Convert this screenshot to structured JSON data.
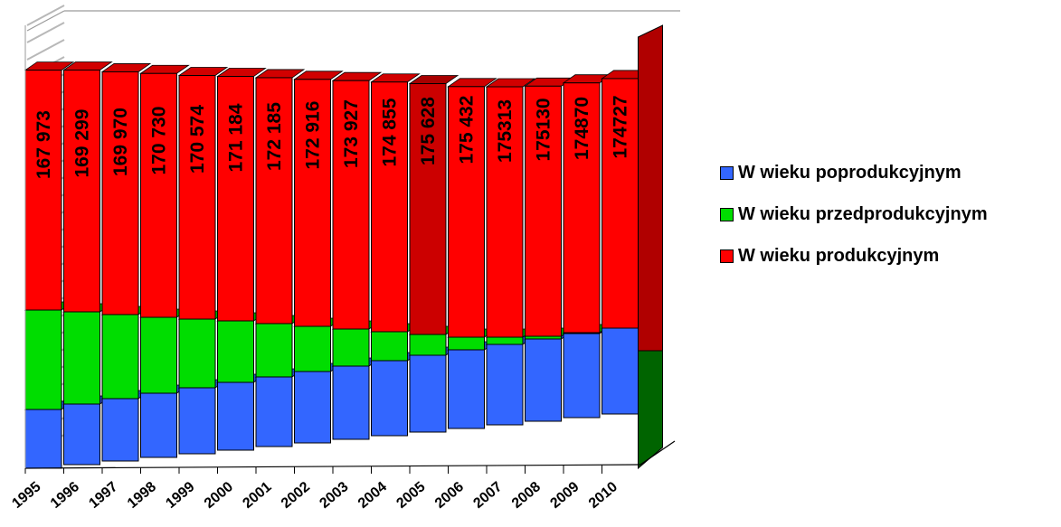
{
  "chart_data": {
    "type": "bar",
    "stacked": true,
    "three_d": true,
    "categories": [
      "1995",
      "1996",
      "1997",
      "1998",
      "1999",
      "2000",
      "2001",
      "2002",
      "2003",
      "2004",
      "2005",
      "2006",
      "2007",
      "2008",
      "2009",
      "2010"
    ],
    "series": [
      {
        "name": "W wieku poprodukcyjnym",
        "color": "#3366ff",
        "values": [
          65,
          67,
          69,
          71,
          73,
          75,
          77,
          79,
          81,
          83,
          85,
          87,
          89,
          91,
          93,
          95
        ]
      },
      {
        "name": "W wieku przedprodukcyjnym",
        "color": "#00dd00",
        "values": [
          110,
          102,
          93,
          84,
          76,
          68,
          59,
          50,
          41,
          32,
          23,
          14,
          8,
          3,
          1,
          0
        ]
      },
      {
        "name": "W wieku produkcyjnym",
        "color": "#ff0000",
        "values": [
          167973,
          169299,
          169970,
          170730,
          170574,
          171184,
          172185,
          172916,
          173927,
          174855,
          175628,
          175432,
          175313,
          175130,
          174870,
          174727
        ],
        "labels": [
          "167 973",
          "169 299",
          "169 970",
          "170 730",
          "170 574",
          "171 184",
          "172 185",
          "172 916",
          "173 927",
          "174 855",
          "175 628",
          "175 432",
          "175313",
          "175130",
          "174870",
          "174727"
        ]
      }
    ],
    "highlight": {
      "category": "2005",
      "series": "W wieku produkcyjnym",
      "color": "#cc0000"
    },
    "legend": "right",
    "gridlines": true,
    "y_axis_labels": false
  }
}
